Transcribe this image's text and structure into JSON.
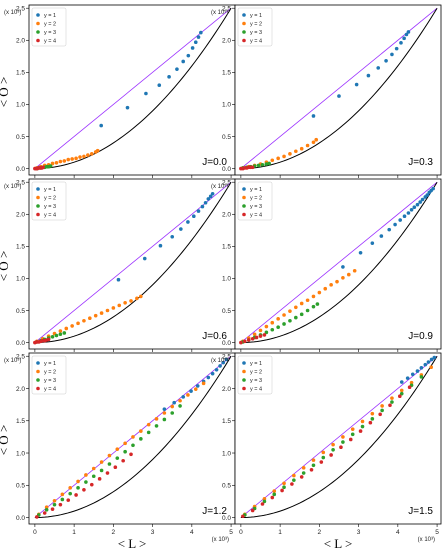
{
  "figure": {
    "ylabel": "< O >",
    "xlabel": "< L >",
    "x_multiplier": "(x 10³)",
    "y_multiplier": "(x 10³)"
  },
  "colors": {
    "y1": "#1f77b4",
    "y2": "#ff7f0e",
    "y3": "#2ca02c",
    "y4": "#d62728",
    "diagonal": "#9b30ff",
    "curve": "#000000"
  },
  "chart_data": [
    {
      "type": "scatter",
      "label": "J=0.0",
      "xlim": [
        -0.15,
        5.1
      ],
      "ylim": [
        -0.1,
        2.55
      ],
      "xticks": [
        "0",
        "1",
        "2",
        "3",
        "4",
        "5"
      ],
      "yticks": [
        "0.0",
        "0.5",
        "1.0",
        "1.5",
        "2.0",
        "2.5"
      ],
      "legend": [
        "y = 1",
        "y = 2",
        "y = 3",
        "y = 4"
      ],
      "legend_position": "upper-left",
      "grid": false,
      "series": [
        {
          "name": "y = 1",
          "x": [
            1.69,
            2.36,
            2.83,
            3.17,
            3.42,
            3.62,
            3.78,
            3.91,
            4.02,
            4.1,
            4.17,
            4.23
          ],
          "y": [
            0.67,
            0.95,
            1.17,
            1.3,
            1.43,
            1.55,
            1.67,
            1.76,
            1.88,
            1.97,
            2.05,
            2.12
          ]
        },
        {
          "name": "y = 2",
          "x": [
            0.05,
            0.15,
            0.25,
            0.35,
            0.45,
            0.55,
            0.65,
            0.75,
            0.85,
            0.95,
            1.05,
            1.15,
            1.25,
            1.35,
            1.45,
            1.55,
            1.6
          ],
          "y": [
            0.01,
            0.03,
            0.05,
            0.06,
            0.08,
            0.09,
            0.11,
            0.12,
            0.14,
            0.15,
            0.16,
            0.18,
            0.19,
            0.21,
            0.23,
            0.26,
            0.28
          ]
        },
        {
          "name": "y = 3",
          "x": [
            0.05,
            0.1,
            0.15,
            0.2,
            0.25,
            0.3,
            0.35,
            0.4
          ],
          "y": [
            0.0,
            0.01,
            0.01,
            0.02,
            0.02,
            0.03,
            0.03,
            0.04
          ]
        },
        {
          "name": "y = 4",
          "x": [
            0.0,
            0.03,
            0.06,
            0.09,
            0.12,
            0.15,
            0.18,
            0.21
          ],
          "y": [
            0.0,
            0.0,
            0.0,
            0.01,
            0.01,
            0.01,
            0.01,
            0.02
          ]
        }
      ]
    },
    {
      "type": "scatter",
      "label": "J=0.3",
      "xlim": [
        -0.15,
        5.1
      ],
      "ylim": [
        -0.1,
        2.55
      ],
      "xticks": [
        "0",
        "1",
        "2",
        "3",
        "4",
        "5"
      ],
      "yticks": [
        "0.0",
        "0.5",
        "1.0",
        "1.5",
        "2.0",
        "2.5"
      ],
      "legend": [
        "y = 1",
        "y = 2",
        "y = 3",
        "y = 4"
      ],
      "legend_position": "upper-left",
      "grid": false,
      "series": [
        {
          "name": "y = 1",
          "x": [
            1.85,
            2.5,
            2.95,
            3.25,
            3.5,
            3.7,
            3.85,
            3.97,
            4.08,
            4.16,
            4.22,
            4.27
          ],
          "y": [
            0.82,
            1.13,
            1.31,
            1.45,
            1.57,
            1.68,
            1.78,
            1.87,
            1.96,
            2.03,
            2.09,
            2.13
          ]
        },
        {
          "name": "y = 2",
          "x": [
            0.05,
            0.2,
            0.35,
            0.5,
            0.65,
            0.8,
            0.95,
            1.1,
            1.25,
            1.4,
            1.55,
            1.7,
            1.85,
            1.92
          ],
          "y": [
            0.01,
            0.03,
            0.05,
            0.07,
            0.1,
            0.13,
            0.16,
            0.19,
            0.23,
            0.27,
            0.31,
            0.36,
            0.41,
            0.45
          ]
        },
        {
          "name": "y = 3",
          "x": [
            0.05,
            0.15,
            0.25,
            0.35,
            0.45,
            0.55,
            0.65,
            0.72
          ],
          "y": [
            0.01,
            0.02,
            0.03,
            0.04,
            0.05,
            0.06,
            0.07,
            0.08
          ]
        },
        {
          "name": "y = 4",
          "x": [
            0.0,
            0.05,
            0.1,
            0.15,
            0.2,
            0.25,
            0.3
          ],
          "y": [
            0.0,
            0.0,
            0.01,
            0.01,
            0.02,
            0.02,
            0.02
          ]
        }
      ]
    },
    {
      "type": "scatter",
      "label": "J=0.6",
      "xlim": [
        -0.15,
        5.1
      ],
      "ylim": [
        -0.1,
        2.55
      ],
      "xticks": [
        "0",
        "1",
        "2",
        "3",
        "4",
        "5"
      ],
      "yticks": [
        "0.0",
        "0.5",
        "1.0",
        "1.5",
        "2.0",
        "2.5"
      ],
      "legend": [
        "y = 1",
        "y = 2",
        "y = 3",
        "y = 4"
      ],
      "legend_position": "upper-left",
      "grid": false,
      "series": [
        {
          "name": "y = 1",
          "x": [
            2.13,
            2.8,
            3.2,
            3.5,
            3.72,
            3.9,
            4.05,
            4.17,
            4.27,
            4.35,
            4.42,
            4.48,
            4.53
          ],
          "y": [
            0.98,
            1.31,
            1.51,
            1.65,
            1.77,
            1.88,
            1.97,
            2.05,
            2.12,
            2.18,
            2.24,
            2.28,
            2.32
          ]
        },
        {
          "name": "y = 2",
          "x": [
            0.05,
            0.2,
            0.35,
            0.5,
            0.65,
            0.8,
            0.95,
            1.1,
            1.25,
            1.4,
            1.55,
            1.7,
            1.85,
            2.0,
            2.15,
            2.3,
            2.45,
            2.6,
            2.7
          ],
          "y": [
            0.02,
            0.06,
            0.1,
            0.14,
            0.18,
            0.22,
            0.26,
            0.3,
            0.34,
            0.38,
            0.42,
            0.46,
            0.5,
            0.54,
            0.58,
            0.62,
            0.65,
            0.69,
            0.72
          ]
        },
        {
          "name": "y = 3",
          "x": [
            0.05,
            0.15,
            0.25,
            0.35,
            0.45,
            0.55,
            0.65,
            0.75
          ],
          "y": [
            0.01,
            0.03,
            0.05,
            0.07,
            0.09,
            0.11,
            0.13,
            0.15
          ]
        },
        {
          "name": "y = 4",
          "x": [
            0.0,
            0.05,
            0.1,
            0.15,
            0.2,
            0.25,
            0.3,
            0.35
          ],
          "y": [
            0.0,
            0.01,
            0.01,
            0.02,
            0.03,
            0.03,
            0.04,
            0.05
          ]
        }
      ]
    },
    {
      "type": "scatter",
      "label": "J=0.9",
      "xlim": [
        -0.15,
        5.1
      ],
      "ylim": [
        -0.1,
        2.55
      ],
      "xticks": [
        "0",
        "1",
        "2",
        "3",
        "4",
        "5"
      ],
      "yticks": [
        "0.0",
        "0.5",
        "1.0",
        "1.5",
        "2.0",
        "2.5"
      ],
      "legend": [
        "y = 1",
        "y = 2",
        "y = 3",
        "y = 4"
      ],
      "legend_position": "upper-left",
      "grid": false,
      "series": [
        {
          "name": "y = 1",
          "x": [
            2.6,
            3.05,
            3.35,
            3.58,
            3.78,
            3.93,
            4.06,
            4.17,
            4.27,
            4.35,
            4.42,
            4.5,
            4.57,
            4.63,
            4.7,
            4.75,
            4.8,
            4.85,
            4.9
          ],
          "y": [
            1.18,
            1.4,
            1.55,
            1.66,
            1.76,
            1.84,
            1.91,
            1.97,
            2.02,
            2.07,
            2.11,
            2.15,
            2.19,
            2.23,
            2.27,
            2.3,
            2.34,
            2.37,
            2.4
          ]
        },
        {
          "name": "y = 2",
          "x": [
            0.05,
            0.2,
            0.35,
            0.5,
            0.65,
            0.8,
            0.95,
            1.1,
            1.25,
            1.4,
            1.55,
            1.7,
            1.85,
            2.0,
            2.15,
            2.3,
            2.45,
            2.6,
            2.75,
            2.9
          ],
          "y": [
            0.02,
            0.07,
            0.13,
            0.19,
            0.25,
            0.31,
            0.37,
            0.43,
            0.49,
            0.55,
            0.61,
            0.66,
            0.72,
            0.78,
            0.84,
            0.9,
            0.95,
            1.01,
            1.06,
            1.12
          ]
        },
        {
          "name": "y = 3",
          "x": [
            0.05,
            0.2,
            0.35,
            0.5,
            0.65,
            0.8,
            0.95,
            1.1,
            1.25,
            1.4,
            1.55,
            1.7,
            1.85,
            1.95
          ],
          "y": [
            0.01,
            0.04,
            0.08,
            0.12,
            0.16,
            0.2,
            0.24,
            0.29,
            0.34,
            0.39,
            0.44,
            0.5,
            0.56,
            0.6
          ]
        },
        {
          "name": "y = 4",
          "x": [
            0.0,
            0.1,
            0.2,
            0.3,
            0.4,
            0.5,
            0.6
          ],
          "y": [
            0.0,
            0.02,
            0.04,
            0.06,
            0.08,
            0.1,
            0.12
          ]
        }
      ]
    },
    {
      "type": "scatter",
      "label": "J=1.2",
      "xlim": [
        -0.15,
        5.1
      ],
      "ylim": [
        -0.1,
        2.55
      ],
      "xticks": [
        "0",
        "1",
        "2",
        "3",
        "4",
        "5"
      ],
      "yticks": [
        "0.0",
        "0.5",
        "1.0",
        "1.5",
        "2.0",
        "2.5"
      ],
      "legend": [
        "y = 1",
        "y = 2",
        "y = 3",
        "y = 4"
      ],
      "legend_position": "upper-left",
      "grid": false,
      "series": [
        {
          "name": "y = 1",
          "x": [
            3.3,
            3.55,
            3.78,
            3.98,
            4.15,
            4.3,
            4.42,
            4.53,
            4.63,
            4.72,
            4.8,
            4.88
          ],
          "y": [
            1.68,
            1.78,
            1.87,
            1.96,
            2.04,
            2.11,
            2.17,
            2.23,
            2.29,
            2.35,
            2.4,
            2.45
          ]
        },
        {
          "name": "y = 2",
          "x": [
            0.1,
            0.3,
            0.5,
            0.7,
            0.9,
            1.1,
            1.3,
            1.5,
            1.7,
            1.9,
            2.1,
            2.3,
            2.5,
            2.7,
            2.9,
            3.1,
            3.3,
            3.5,
            3.7,
            3.9,
            4.1,
            4.3
          ],
          "y": [
            0.05,
            0.16,
            0.26,
            0.36,
            0.46,
            0.56,
            0.66,
            0.76,
            0.86,
            0.96,
            1.06,
            1.15,
            1.25,
            1.34,
            1.44,
            1.53,
            1.62,
            1.72,
            1.81,
            1.9,
            1.99,
            2.08
          ]
        },
        {
          "name": "y = 3",
          "x": [
            0.1,
            0.3,
            0.5,
            0.7,
            0.9,
            1.1,
            1.3,
            1.5,
            1.7,
            1.9,
            2.1,
            2.3,
            2.5,
            2.7,
            2.9,
            3.1,
            3.3,
            3.5,
            3.7
          ],
          "y": [
            0.04,
            0.12,
            0.2,
            0.28,
            0.37,
            0.46,
            0.55,
            0.64,
            0.73,
            0.83,
            0.92,
            1.02,
            1.12,
            1.22,
            1.32,
            1.42,
            1.52,
            1.62,
            1.73
          ]
        },
        {
          "name": "y = 4",
          "x": [
            0.05,
            0.25,
            0.45,
            0.65,
            0.85,
            1.05,
            1.25,
            1.45,
            1.65,
            1.85,
            2.05,
            2.25,
            2.45
          ],
          "y": [
            0.01,
            0.07,
            0.13,
            0.2,
            0.27,
            0.35,
            0.43,
            0.51,
            0.6,
            0.69,
            0.78,
            0.88,
            0.98
          ]
        }
      ]
    },
    {
      "type": "scatter",
      "label": "J=1.5",
      "xlim": [
        -0.15,
        5.1
      ],
      "ylim": [
        -0.1,
        2.55
      ],
      "xticks": [
        "0",
        "1",
        "2",
        "3",
        "4",
        "5"
      ],
      "yticks": [
        "0.0",
        "0.5",
        "1.0",
        "1.5",
        "2.0",
        "2.5"
      ],
      "legend": [
        "y = 1",
        "y = 2",
        "y = 3",
        "y = 4"
      ],
      "legend_position": "upper-left",
      "grid": false,
      "series": [
        {
          "name": "y = 1",
          "x": [
            4.1,
            4.25,
            4.38,
            4.5,
            4.6,
            4.7,
            4.78,
            4.86,
            4.93
          ],
          "y": [
            2.1,
            2.16,
            2.22,
            2.27,
            2.32,
            2.37,
            2.41,
            2.45,
            2.48
          ]
        },
        {
          "name": "y = 2",
          "x": [
            0.1,
            0.35,
            0.6,
            0.85,
            1.1,
            1.35,
            1.6,
            1.85,
            2.1,
            2.35,
            2.6,
            2.85,
            3.1,
            3.35,
            3.6,
            3.85,
            4.1,
            4.35,
            4.6,
            4.85
          ],
          "y": [
            0.05,
            0.17,
            0.29,
            0.41,
            0.53,
            0.65,
            0.77,
            0.89,
            1.01,
            1.13,
            1.25,
            1.37,
            1.49,
            1.61,
            1.73,
            1.85,
            1.97,
            2.09,
            2.21,
            2.33
          ]
        },
        {
          "name": "y = 3",
          "x": [
            0.1,
            0.35,
            0.6,
            0.85,
            1.1,
            1.35,
            1.6,
            1.85,
            2.1,
            2.35,
            2.6,
            2.85,
            3.1,
            3.35,
            3.6,
            3.85,
            4.1,
            4.35,
            4.6
          ],
          "y": [
            0.04,
            0.14,
            0.25,
            0.36,
            0.47,
            0.58,
            0.69,
            0.81,
            0.93,
            1.05,
            1.17,
            1.29,
            1.41,
            1.53,
            1.66,
            1.79,
            1.92,
            2.05,
            2.18
          ]
        },
        {
          "name": "y = 4",
          "x": [
            0.05,
            0.3,
            0.55,
            0.8,
            1.05,
            1.3,
            1.55,
            1.8,
            2.05,
            2.3,
            2.55,
            2.8,
            3.05,
            3.3,
            3.55,
            3.8,
            4.05,
            4.3
          ],
          "y": [
            0.02,
            0.11,
            0.21,
            0.31,
            0.42,
            0.52,
            0.63,
            0.74,
            0.86,
            0.97,
            1.09,
            1.21,
            1.34,
            1.47,
            1.6,
            1.74,
            1.88,
            2.02
          ]
        }
      ]
    }
  ]
}
